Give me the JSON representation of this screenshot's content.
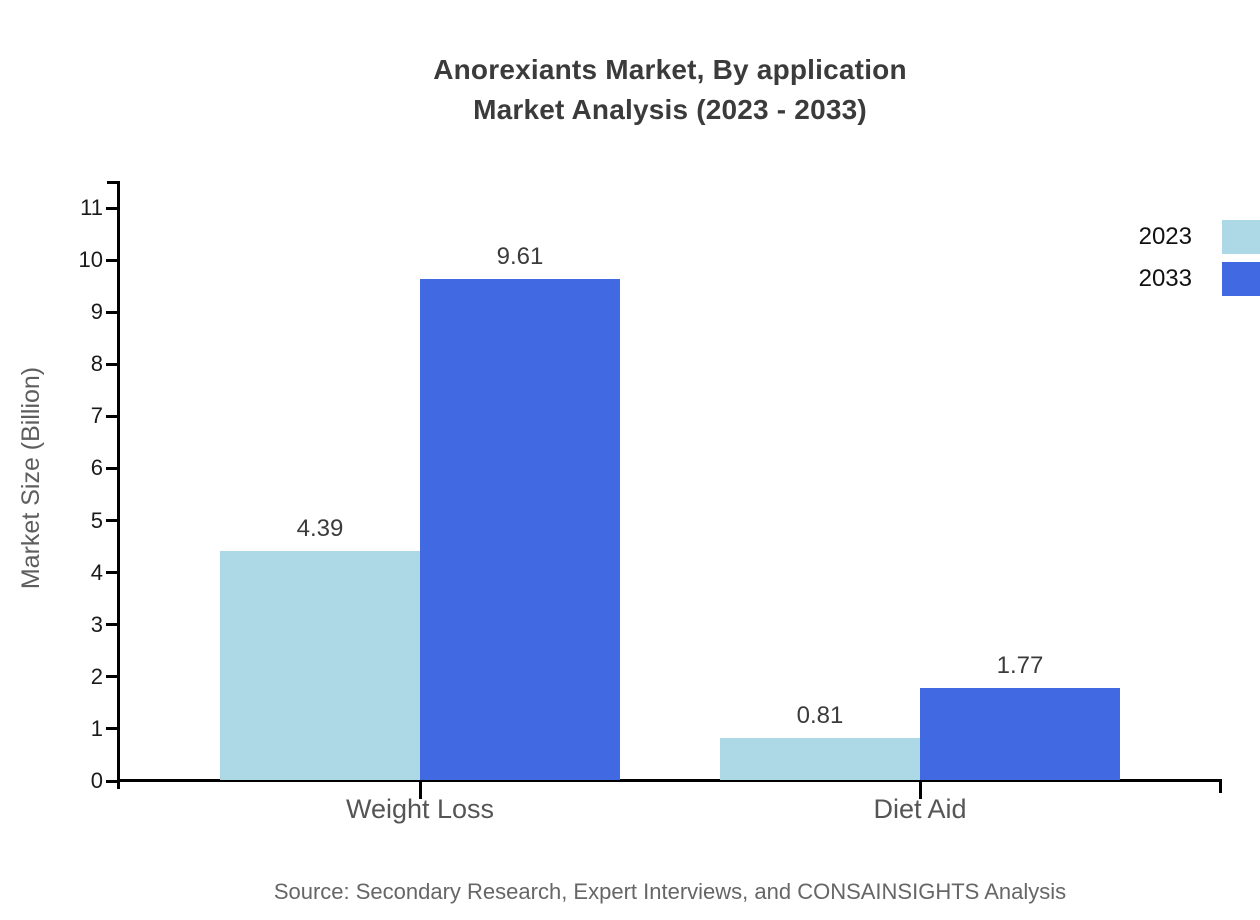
{
  "title": {
    "line1": "Anorexiants Market, By application",
    "line2": "Market Analysis (2023 - 2033)"
  },
  "source": "Source: Secondary Research, Expert Interviews, and CONSAINSIGHTS Analysis",
  "legend": {
    "items": [
      {
        "label": "2023",
        "color": "#ADD8E6"
      },
      {
        "label": "2033",
        "color": "#4169E1"
      }
    ]
  },
  "chart_data": {
    "type": "bar",
    "title": "Anorexiants Market, By application Market Analysis (2023 - 2033)",
    "categories": [
      "Weight Loss",
      "Diet Aid"
    ],
    "series": [
      {
        "name": "2023",
        "color": "#ADD8E6",
        "values": [
          4.39,
          0.81
        ]
      },
      {
        "name": "2033",
        "color": "#4169E1",
        "values": [
          9.61,
          1.77
        ]
      }
    ],
    "xlabel": "",
    "ylabel": "Market Size (Billion)",
    "ylim": [
      0,
      11
    ],
    "yticks": [
      0,
      1,
      2,
      3,
      4,
      5,
      6,
      7,
      8,
      9,
      10,
      11
    ],
    "grid": false,
    "legend_position": "top-right",
    "value_labels": true,
    "value_label_format": "0.00"
  },
  "colors": {
    "axis": "#000000",
    "background": "#ffffff",
    "title_text": "#3b3b3b",
    "tick_text": "#1a1a1a",
    "category_text": "#555555",
    "value_text": "#3b3b3b",
    "source_text": "#666666"
  }
}
